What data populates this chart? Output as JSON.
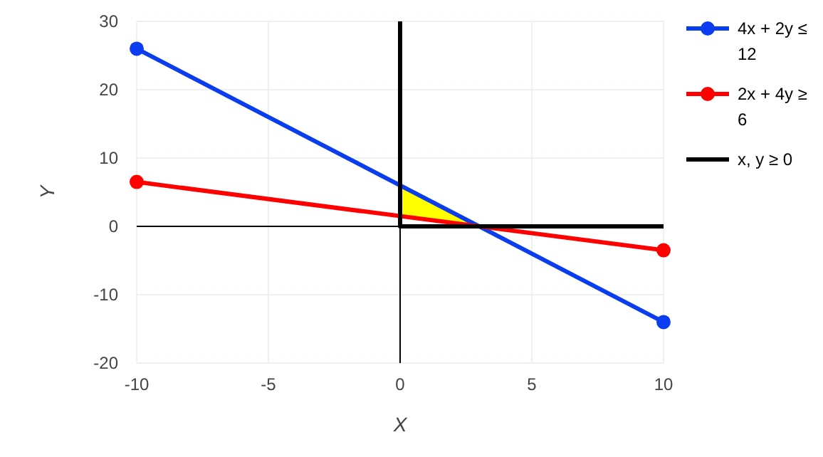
{
  "chart_data": {
    "type": "line",
    "xlabel": "X",
    "ylabel": "Y",
    "xlim": [
      -10,
      10
    ],
    "ylim": [
      -20,
      30
    ],
    "xticks": [
      -10,
      -5,
      0,
      5,
      10
    ],
    "yticks": [
      -20,
      -10,
      0,
      10,
      20,
      30
    ],
    "grid": true,
    "legend": "top right",
    "series": [
      {
        "type": "area",
        "color": "#ffff00",
        "x": [
          0,
          3,
          0
        ],
        "values": [
          6,
          0,
          1.5
        ]
      },
      {
        "name": "4x + 2y ≤ 12",
        "color": "#0a3cf0",
        "x": [
          -10,
          10
        ],
        "values": [
          26,
          -14
        ],
        "marker": "circle"
      },
      {
        "name": "2x + 4y ≥ 6",
        "color": "#ff0000",
        "x": [
          -10,
          10
        ],
        "values": [
          6.5,
          -3.5
        ],
        "marker": "circle"
      },
      {
        "name": "x, y ≥ 0",
        "color": "#000000",
        "x": [
          0,
          0,
          10
        ],
        "values": [
          30,
          0,
          0
        ],
        "marker": "none"
      }
    ]
  }
}
